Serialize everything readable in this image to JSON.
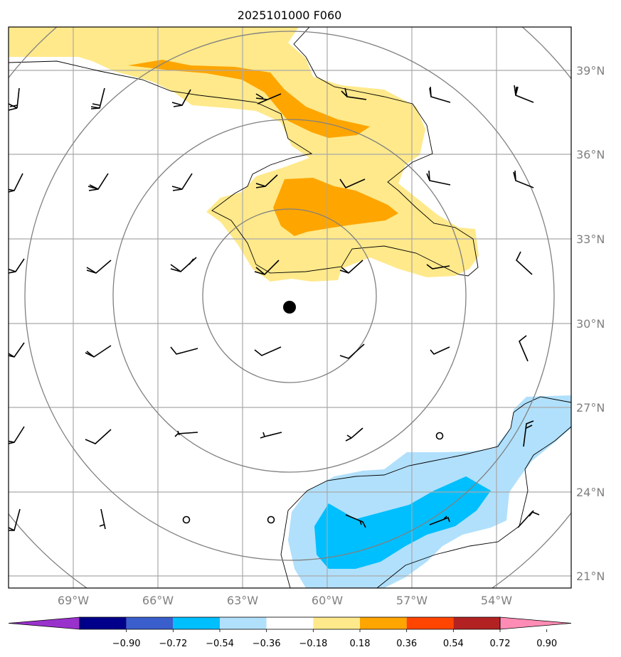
{
  "figure": {
    "title": "2025101000 F060"
  },
  "map": {
    "lat_ticks": [
      "39°N",
      "36°N",
      "33°N",
      "30°N",
      "27°N",
      "24°N",
      "21°N"
    ],
    "lon_ticks": [
      "69°W",
      "66°W",
      "63°W",
      "60°W",
      "57°W",
      "54°W"
    ],
    "storm_center": {
      "lat": 30.6,
      "lon": "61.3°W"
    },
    "circle_style": "gray concentric range rings around storm center",
    "positive_anomaly": "yellow/orange patches to the north",
    "negative_anomaly": "blue patches to the southeast"
  },
  "colorbar": {
    "tick_labels": [
      "−0.90",
      "−0.72",
      "−0.54",
      "−0.36",
      "−0.18",
      "0.18",
      "0.36",
      "0.54",
      "0.72",
      "0.90"
    ],
    "colors": [
      "#9932cc",
      "#00008b",
      "#3a5fcd",
      "#00bfff",
      "#b0e0fb",
      "#ffffff",
      "#ffe98a",
      "#ffa500",
      "#ff4500",
      "#b22222",
      "#ff8cb4"
    ]
  },
  "colors": {
    "light_yellow": "#ffe98a",
    "orange": "#ffa500",
    "light_blue": "#b0e0fb",
    "deep_sky_blue": "#00bfff"
  }
}
